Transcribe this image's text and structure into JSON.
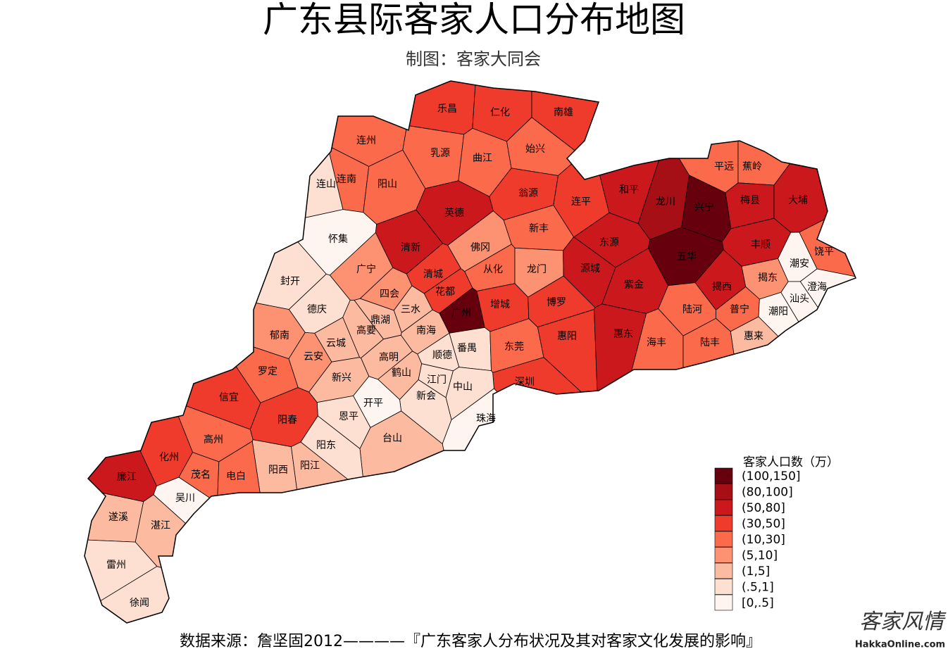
{
  "header": {
    "title": "广东县际客家人口分布地图",
    "subtitle": "制图：客家大同会"
  },
  "legend": {
    "title": "客家人口数（万）",
    "items": [
      {
        "label": "(100,150]",
        "color": "#67000d"
      },
      {
        "label": "(80,100]",
        "color": "#a50f15"
      },
      {
        "label": "(50,80]",
        "color": "#cb181d"
      },
      {
        "label": "(30,50]",
        "color": "#ef3b2c"
      },
      {
        "label": "(10,30]",
        "color": "#fb6a4a"
      },
      {
        "label": "(5,10]",
        "color": "#fc9272"
      },
      {
        "label": "(1,5]",
        "color": "#fcbba1"
      },
      {
        "label": "(.5,1]",
        "color": "#fee0d2"
      },
      {
        "label": "[0,.5]",
        "color": "#fff5f0"
      }
    ]
  },
  "counties": [
    {
      "name": "乐昌",
      "category": "(30,50]"
    },
    {
      "name": "仁化",
      "category": "(30,50]"
    },
    {
      "name": "南雄",
      "category": "(30,50]"
    },
    {
      "name": "连州",
      "category": "(10,30]"
    },
    {
      "name": "乳源",
      "category": "(10,30]"
    },
    {
      "name": "曲江",
      "category": "(10,30]"
    },
    {
      "name": "始兴",
      "category": "(10,30]"
    },
    {
      "name": "连南",
      "category": "(10,30]"
    },
    {
      "name": "连山",
      "category": "(.5,1]"
    },
    {
      "name": "阳山",
      "category": "(10,30]"
    },
    {
      "name": "英德",
      "category": "(50,80]"
    },
    {
      "name": "翁源",
      "category": "(30,50]"
    },
    {
      "name": "连平",
      "category": "(30,50]"
    },
    {
      "name": "和平",
      "category": "(50,80]"
    },
    {
      "name": "龙川",
      "category": "(80,100]"
    },
    {
      "name": "兴宁",
      "category": "(100,150]"
    },
    {
      "name": "平远",
      "category": "(10,30]"
    },
    {
      "name": "蕉岭",
      "category": "(10,30]"
    },
    {
      "name": "梅县",
      "category": "(50,80]"
    },
    {
      "name": "大埔",
      "category": "(50,80]"
    },
    {
      "name": "怀集",
      "category": "[0,.5]"
    },
    {
      "name": "清新",
      "category": "(50,80]"
    },
    {
      "name": "佛冈",
      "category": "(5,10]"
    },
    {
      "name": "新丰",
      "category": "(10,30]"
    },
    {
      "name": "东源",
      "category": "(50,80]"
    },
    {
      "name": "丰顺",
      "category": "(50,80]"
    },
    {
      "name": "饶平",
      "category": "(10,30]"
    },
    {
      "name": "广宁",
      "category": "(5,10]"
    },
    {
      "name": "从化",
      "category": "(10,30]"
    },
    {
      "name": "龙门",
      "category": "(5,10]"
    },
    {
      "name": "源城",
      "category": "(50,80]"
    },
    {
      "name": "五华",
      "category": "(100,150]"
    },
    {
      "name": "揭东",
      "category": "(5,10]"
    },
    {
      "name": "潮安",
      "category": "[0,.5]"
    },
    {
      "name": "封开",
      "category": "(.5,1]"
    },
    {
      "name": "四会",
      "category": "(5,10]"
    },
    {
      "name": "清城",
      "category": "(30,50]"
    },
    {
      "name": "花都",
      "category": "(30,50]"
    },
    {
      "name": "紫金",
      "category": "(50,80]"
    },
    {
      "name": "揭西",
      "category": "(50,80]"
    },
    {
      "name": "澄海",
      "category": "[0,.5]"
    },
    {
      "name": "德庆",
      "category": "(.5,1]"
    },
    {
      "name": "三水",
      "category": "(1,5]"
    },
    {
      "name": "广州",
      "category": "(100,150]"
    },
    {
      "name": "增城",
      "category": "(30,50]"
    },
    {
      "name": "博罗",
      "category": "(30,50]"
    },
    {
      "name": "陆河",
      "category": "(10,30]"
    },
    {
      "name": "普宁",
      "category": "(10,30]"
    },
    {
      "name": "潮阳",
      "category": "[0,.5]"
    },
    {
      "name": "汕头",
      "category": "[0,.5]"
    },
    {
      "name": "高要",
      "category": "(1,5]"
    },
    {
      "name": "鼎湖",
      "category": "(1,5]"
    },
    {
      "name": "南海",
      "category": "(1,5]"
    },
    {
      "name": "惠阳",
      "category": "(30,50]"
    },
    {
      "name": "惠东",
      "category": "(50,80]"
    },
    {
      "name": "惠来",
      "category": "(1,5]"
    },
    {
      "name": "郁南",
      "category": "(5,10]"
    },
    {
      "name": "云城",
      "category": "(1,5]"
    },
    {
      "name": "番禺",
      "category": "(.5,1]"
    },
    {
      "name": "东莞",
      "category": "(10,30]"
    },
    {
      "name": "海丰",
      "category": "(10,30]"
    },
    {
      "name": "陆丰",
      "category": "(10,30]"
    },
    {
      "name": "云安",
      "category": "(5,10]"
    },
    {
      "name": "高明",
      "category": "(1,5]"
    },
    {
      "name": "顺德",
      "category": "(.5,1]"
    },
    {
      "name": "深圳",
      "category": "(30,50]"
    },
    {
      "name": "罗定",
      "category": "(10,30]"
    },
    {
      "name": "新兴",
      "category": "(1,5]"
    },
    {
      "name": "鹤山",
      "category": "(1,5]"
    },
    {
      "name": "江门",
      "category": "(.5,1]"
    },
    {
      "name": "中山",
      "category": "(.5,1]"
    },
    {
      "name": "信宜",
      "category": "(30,50]"
    },
    {
      "name": "新会",
      "category": "(.5,1]"
    },
    {
      "name": "开平",
      "category": "[0,.5]"
    },
    {
      "name": "珠海",
      "category": "[0,.5]"
    },
    {
      "name": "恩平",
      "category": "(.5,1]"
    },
    {
      "name": "阳春",
      "category": "(30,50]"
    },
    {
      "name": "高州",
      "category": "(10,30]"
    },
    {
      "name": "台山",
      "category": "(1,5]"
    },
    {
      "name": "阳东",
      "category": "(.5,1]"
    },
    {
      "name": "化州",
      "category": "(30,50]"
    },
    {
      "name": "阳西",
      "category": "(1,5]"
    },
    {
      "name": "阳江",
      "category": "(1,5]"
    },
    {
      "name": "茂名",
      "category": "(10,30]"
    },
    {
      "name": "电白",
      "category": "(10,30]"
    },
    {
      "name": "廉江",
      "category": "(50,80]"
    },
    {
      "name": "吴川",
      "category": "[0,.5]"
    },
    {
      "name": "遂溪",
      "category": "(1,5]"
    },
    {
      "name": "湛江",
      "category": "(1,5]"
    },
    {
      "name": "雷州",
      "category": "(.5,1]"
    },
    {
      "name": "徐闻",
      "category": "(.5,1]"
    }
  ],
  "footer": {
    "source": "数据来源：詹坚固2012————『广东客家人分布状况及其对客家文化发展的影响』",
    "watermark": {
      "mark": "客家风情",
      "site": "HakkaOnline.com"
    }
  }
}
